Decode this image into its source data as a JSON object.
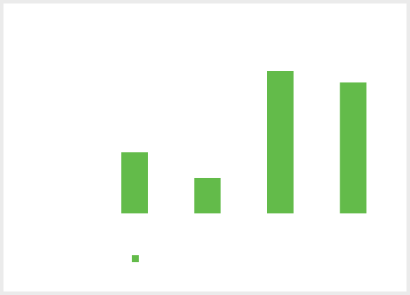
{
  "colors": {
    "series": "#63bb4a",
    "frame_border": "#ebebeb",
    "plot_background": "#ffffff"
  },
  "chart_data": {
    "type": "bar",
    "categories": [
      "",
      "",
      "",
      ""
    ],
    "series": [
      {
        "values": [
          43,
          25,
          100,
          92
        ]
      }
    ],
    "title": "",
    "xlabel": "",
    "ylabel": "",
    "ylim": [
      0,
      100
    ],
    "grid": false,
    "legend": "bottom-left"
  }
}
